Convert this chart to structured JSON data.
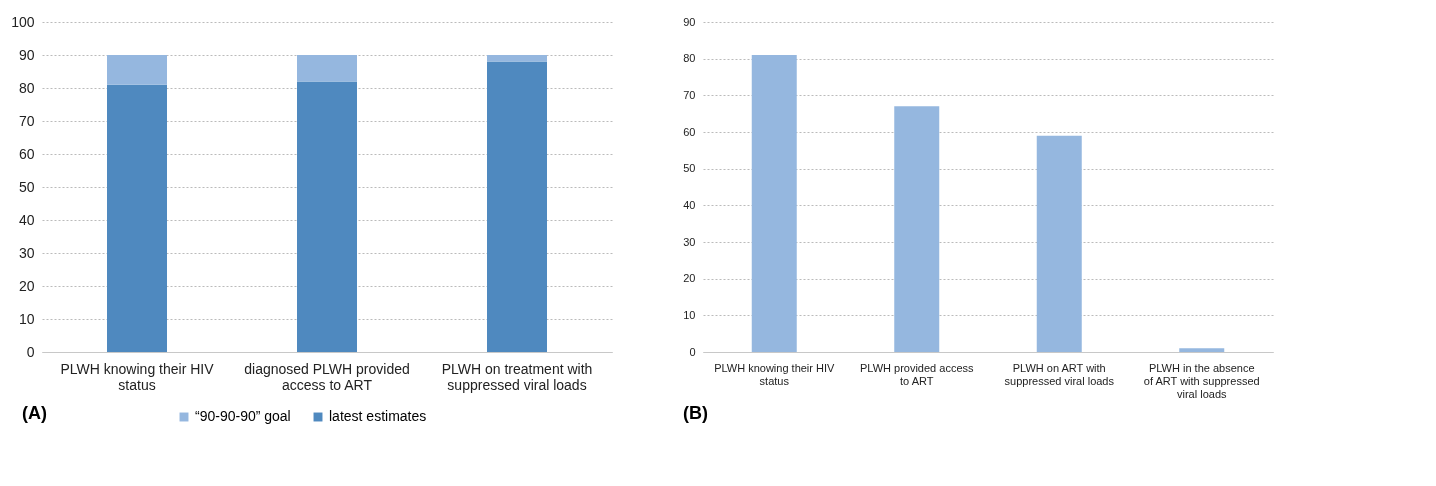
{
  "chart_data": [
    {
      "type": "bar",
      "stacked": true,
      "categories": [
        "PLWH knowing their HIV status",
        "diagnosed PLWH provided access to ART",
        "PLWH on treatment with suppressed viral loads"
      ],
      "series": [
        {
          "name": "latest estimates",
          "color": "#4f89bf",
          "values": [
            81,
            82,
            88
          ]
        },
        {
          "name": "“90-90-90” goal",
          "color": "#95b7df",
          "values": [
            9,
            8,
            2
          ]
        }
      ],
      "ylim": [
        0,
        100
      ],
      "yticks": [
        0,
        10,
        20,
        30,
        40,
        50,
        60,
        70,
        80,
        90,
        100
      ],
      "grid": "y",
      "legend": "bottom",
      "annotations": [
        "(A)"
      ]
    },
    {
      "type": "bar",
      "categories": [
        "PLWH knowing their HIV status",
        "PLWH provided access to ART",
        "PLWH on ART with suppressed viral loads",
        "PLWH  in the absence of ART with suppressed viral loads"
      ],
      "series": [
        {
          "color": "#95b7df",
          "values": [
            81,
            67,
            59,
            1
          ]
        }
      ],
      "ylim": [
        0,
        90
      ],
      "yticks": [
        0,
        10,
        20,
        30,
        40,
        50,
        60,
        70,
        80,
        90
      ],
      "grid": "y",
      "annotations": [
        "(B)"
      ]
    }
  ]
}
